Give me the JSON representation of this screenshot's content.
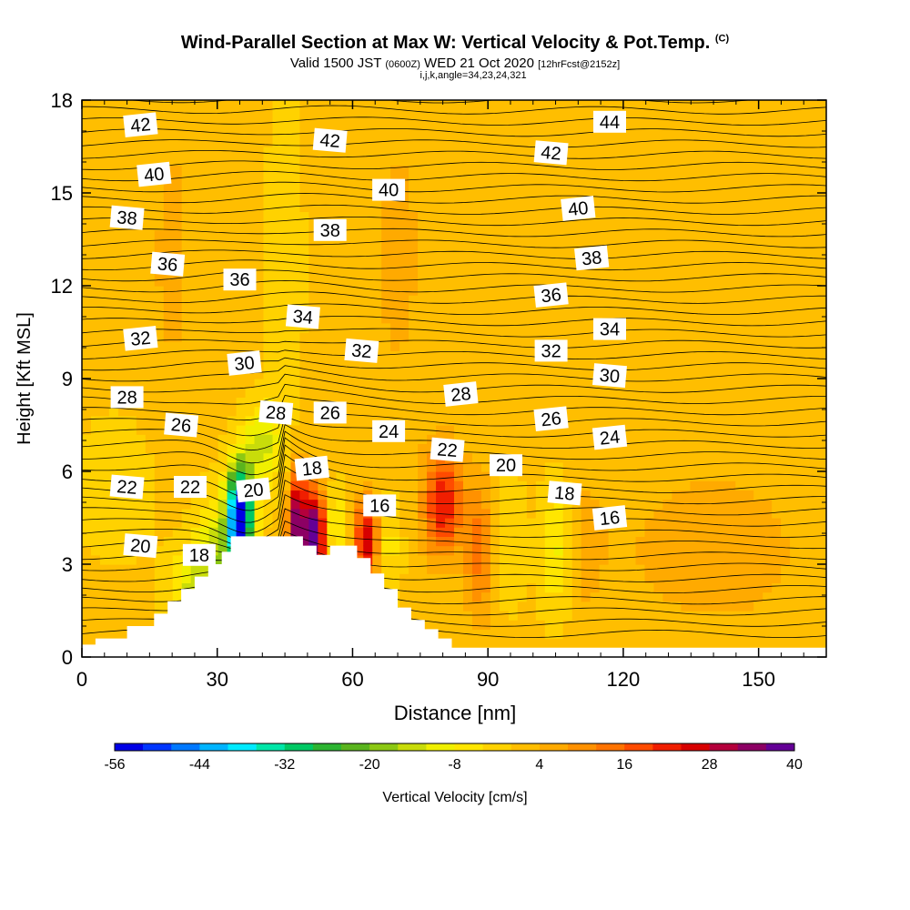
{
  "header": {
    "title_main": "Wind-Parallel Section at Max W: Vertical Velocity & Pot.Temp.",
    "title_mark": "(C)",
    "valid_prefix": "Valid 1500 JST",
    "valid_zulu": "(0600Z)",
    "valid_date": "WED 21 Oct 2020",
    "forecast": "[12hrFcst@2152z]",
    "indices": "i,j,k,angle=34,23,24,321"
  },
  "chart_data": {
    "type": "heatmap",
    "xlabel": "Distance [nm]",
    "ylabel": "Height [Kft MSL]",
    "xlim": [
      0,
      165
    ],
    "ylim": [
      0,
      18
    ],
    "x_ticks": [
      0,
      30,
      60,
      90,
      120,
      150
    ],
    "y_ticks": [
      0,
      3,
      6,
      9,
      12,
      15,
      18
    ],
    "colorbar": {
      "label": "Vertical Velocity [cm/s]",
      "tick_labels": [
        "-56",
        "-44",
        "-32",
        "-20",
        "-8",
        "4",
        "16",
        "28",
        "40"
      ],
      "tick_values": [
        -56,
        -44,
        -32,
        -20,
        -8,
        4,
        16,
        28,
        40
      ],
      "colors": [
        "#0000e6",
        "#0036ff",
        "#0078ff",
        "#00b4ff",
        "#00eaff",
        "#00e6a8",
        "#00c864",
        "#2db432",
        "#5ab41e",
        "#8cc814",
        "#c8dc0a",
        "#f0f000",
        "#ffe600",
        "#ffd200",
        "#ffbe00",
        "#ffaa00",
        "#ff9100",
        "#ff7300",
        "#ff4b00",
        "#f01e00",
        "#d70000",
        "#b4003c",
        "#8c0064",
        "#640096"
      ]
    },
    "background_velocity": 1,
    "velocity_features": [
      {
        "x": 35,
        "y": 4.6,
        "sx": 2.0,
        "sy": 1.1,
        "v": -56
      },
      {
        "x": 30,
        "y": 3.2,
        "sx": 3.5,
        "sy": 1.3,
        "v": -14
      },
      {
        "x": 24,
        "y": 2.1,
        "sx": 3.5,
        "sy": 1.0,
        "v": -11
      },
      {
        "x": 40,
        "y": 6.9,
        "sx": 3.0,
        "sy": 0.9,
        "v": -13
      },
      {
        "x": 48,
        "y": 4.2,
        "sx": 1.6,
        "sy": 1.2,
        "v": 40
      },
      {
        "x": 52,
        "y": 4.0,
        "sx": 1.4,
        "sy": 1.0,
        "v": 40
      },
      {
        "x": 56,
        "y": 4.3,
        "sx": 2.0,
        "sy": 0.8,
        "v": -8
      },
      {
        "x": 63,
        "y": 3.8,
        "sx": 1.8,
        "sy": 0.9,
        "v": 28
      },
      {
        "x": 68,
        "y": 3.6,
        "sx": 2.0,
        "sy": 1.1,
        "v": -6
      },
      {
        "x": 80,
        "y": 5.0,
        "sx": 3.0,
        "sy": 1.2,
        "v": 24
      },
      {
        "x": 88,
        "y": 3.5,
        "sx": 2.2,
        "sy": 1.6,
        "v": 14
      },
      {
        "x": 95,
        "y": 3.7,
        "sx": 2.2,
        "sy": 1.6,
        "v": -3
      },
      {
        "x": 105,
        "y": 3.5,
        "sx": 2.5,
        "sy": 1.4,
        "v": -9
      },
      {
        "x": 112,
        "y": 3.6,
        "sx": 2.5,
        "sy": 1.3,
        "v": 7
      },
      {
        "x": 20,
        "y": 13.0,
        "sx": 4.0,
        "sy": 4.0,
        "v": 5
      },
      {
        "x": 45,
        "y": 12.5,
        "sx": 3.0,
        "sy": 5.0,
        "v": -2
      },
      {
        "x": 70,
        "y": 13.0,
        "sx": 5.0,
        "sy": 4.0,
        "v": 5
      },
      {
        "x": 140,
        "y": 3.5,
        "sx": 14.0,
        "sy": 1.8,
        "v": 7
      },
      {
        "x": 8,
        "y": 5.5,
        "sx": 6.0,
        "sy": 1.5,
        "v": -3
      }
    ],
    "terrain": [
      [
        0,
        0.4
      ],
      [
        3,
        0.4
      ],
      [
        3,
        0.6
      ],
      [
        10,
        0.6
      ],
      [
        10,
        1.0
      ],
      [
        16,
        1.0
      ],
      [
        16,
        1.4
      ],
      [
        19,
        1.4
      ],
      [
        19,
        1.8
      ],
      [
        22,
        1.8
      ],
      [
        22,
        2.2
      ],
      [
        25,
        2.2
      ],
      [
        25,
        2.6
      ],
      [
        28,
        2.6
      ],
      [
        28,
        3.0
      ],
      [
        31,
        3.0
      ],
      [
        31,
        3.4
      ],
      [
        33,
        3.4
      ],
      [
        33,
        3.9
      ],
      [
        49,
        3.9
      ],
      [
        49,
        3.6
      ],
      [
        52,
        3.6
      ],
      [
        52,
        3.3
      ],
      [
        55,
        3.3
      ],
      [
        55,
        3.6
      ],
      [
        61,
        3.6
      ],
      [
        61,
        3.2
      ],
      [
        64,
        3.2
      ],
      [
        64,
        2.7
      ],
      [
        67,
        2.7
      ],
      [
        67,
        2.2
      ],
      [
        70,
        2.2
      ],
      [
        70,
        1.6
      ],
      [
        73,
        1.6
      ],
      [
        73,
        1.2
      ],
      [
        76,
        1.2
      ],
      [
        76,
        0.9
      ],
      [
        79,
        0.9
      ],
      [
        79,
        0.6
      ],
      [
        82,
        0.6
      ],
      [
        82,
        0.3
      ],
      [
        165,
        0.3
      ],
      [
        165,
        0
      ],
      [
        0,
        0
      ]
    ],
    "isentrope_labels": [
      {
        "text": "42",
        "x": 13,
        "y": 17.2
      },
      {
        "text": "42",
        "x": 55,
        "y": 16.7
      },
      {
        "text": "44",
        "x": 117,
        "y": 17.3
      },
      {
        "text": "40",
        "x": 16,
        "y": 15.6
      },
      {
        "text": "42",
        "x": 104,
        "y": 16.3
      },
      {
        "text": "40",
        "x": 68,
        "y": 15.1
      },
      {
        "text": "40",
        "x": 110,
        "y": 14.5
      },
      {
        "text": "38",
        "x": 10,
        "y": 14.2
      },
      {
        "text": "38",
        "x": 55,
        "y": 13.8
      },
      {
        "text": "38",
        "x": 113,
        "y": 12.9
      },
      {
        "text": "36",
        "x": 19,
        "y": 12.7
      },
      {
        "text": "36",
        "x": 35,
        "y": 12.2
      },
      {
        "text": "36",
        "x": 104,
        "y": 11.7
      },
      {
        "text": "34",
        "x": 49,
        "y": 11.0
      },
      {
        "text": "34",
        "x": 117,
        "y": 10.6
      },
      {
        "text": "32",
        "x": 13,
        "y": 10.3
      },
      {
        "text": "32",
        "x": 62,
        "y": 9.9
      },
      {
        "text": "32",
        "x": 104,
        "y": 9.9
      },
      {
        "text": "30",
        "x": 36,
        "y": 9.5
      },
      {
        "text": "30",
        "x": 117,
        "y": 9.1
      },
      {
        "text": "28",
        "x": 10,
        "y": 8.4
      },
      {
        "text": "28",
        "x": 84,
        "y": 8.5
      },
      {
        "text": "28",
        "x": 43,
        "y": 7.9
      },
      {
        "text": "26",
        "x": 55,
        "y": 7.9
      },
      {
        "text": "26",
        "x": 104,
        "y": 7.7
      },
      {
        "text": "26",
        "x": 22,
        "y": 7.5
      },
      {
        "text": "24",
        "x": 68,
        "y": 7.3
      },
      {
        "text": "24",
        "x": 117,
        "y": 7.1
      },
      {
        "text": "22",
        "x": 81,
        "y": 6.7
      },
      {
        "text": "20",
        "x": 94,
        "y": 6.2
      },
      {
        "text": "18",
        "x": 51,
        "y": 6.1
      },
      {
        "text": "22",
        "x": 10,
        "y": 5.5
      },
      {
        "text": "22",
        "x": 24,
        "y": 5.5
      },
      {
        "text": "20",
        "x": 38,
        "y": 5.4
      },
      {
        "text": "18",
        "x": 107,
        "y": 5.3
      },
      {
        "text": "16",
        "x": 66,
        "y": 4.9
      },
      {
        "text": "16",
        "x": 117,
        "y": 4.5
      },
      {
        "text": "20",
        "x": 13,
        "y": 3.6
      },
      {
        "text": "18",
        "x": 26,
        "y": 3.3
      }
    ]
  }
}
